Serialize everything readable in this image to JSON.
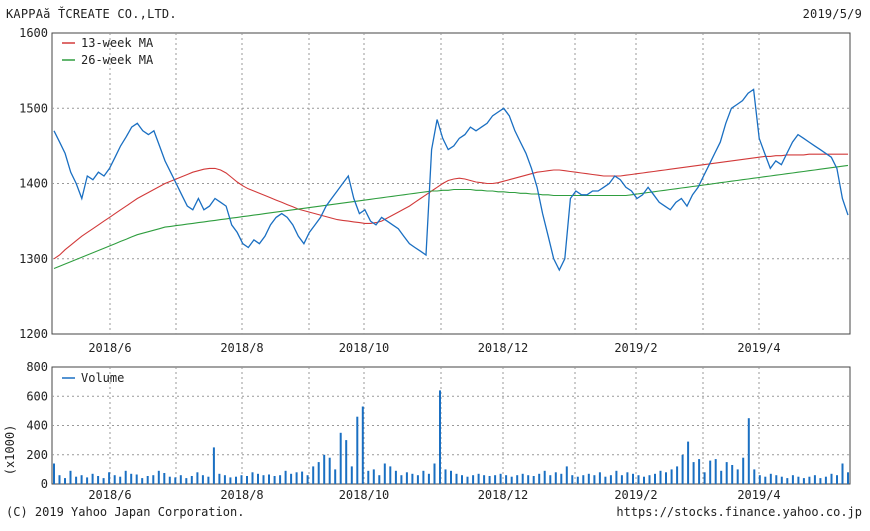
{
  "header": {
    "company": "KAPPAă ŤCREATE CO.,LTD.",
    "date": "2019/5/9"
  },
  "footer": {
    "copyright": "(C) 2019 Yahoo Japan Corporation.",
    "source": "https://stocks.finance.yahoo.co.jp"
  },
  "chart_data": [
    {
      "type": "line",
      "title": "",
      "ylim": [
        1200,
        1600
      ],
      "yticks": [
        1200,
        1300,
        1400,
        1500,
        1600
      ],
      "xticks": [
        "2018/6",
        "2018/8",
        "2018/10",
        "2018/12",
        "2019/2",
        "2019/4"
      ],
      "grid": true,
      "legend_position": "top-left",
      "series": [
        {
          "name": "",
          "color": "#1a6fc2",
          "values": [
            1470,
            1455,
            1440,
            1415,
            1400,
            1380,
            1410,
            1405,
            1415,
            1410,
            1420,
            1435,
            1450,
            1462,
            1475,
            1480,
            1470,
            1465,
            1470,
            1450,
            1430,
            1415,
            1400,
            1385,
            1370,
            1365,
            1380,
            1365,
            1370,
            1380,
            1375,
            1370,
            1345,
            1335,
            1320,
            1315,
            1325,
            1320,
            1330,
            1345,
            1355,
            1360,
            1355,
            1345,
            1330,
            1320,
            1335,
            1345,
            1355,
            1370,
            1380,
            1390,
            1400,
            1410,
            1380,
            1360,
            1365,
            1350,
            1345,
            1355,
            1350,
            1345,
            1340,
            1330,
            1320,
            1315,
            1310,
            1305,
            1445,
            1485,
            1460,
            1445,
            1450,
            1460,
            1465,
            1475,
            1470,
            1475,
            1480,
            1490,
            1495,
            1500,
            1490,
            1470,
            1455,
            1440,
            1420,
            1395,
            1360,
            1330,
            1300,
            1285,
            1300,
            1380,
            1390,
            1385,
            1385,
            1390,
            1390,
            1395,
            1400,
            1410,
            1405,
            1395,
            1390,
            1380,
            1385,
            1395,
            1385,
            1375,
            1370,
            1365,
            1375,
            1380,
            1370,
            1385,
            1395,
            1410,
            1425,
            1440,
            1455,
            1480,
            1500,
            1505,
            1510,
            1520,
            1525,
            1460,
            1440,
            1420,
            1430,
            1425,
            1440,
            1455,
            1465,
            1460,
            1455,
            1450,
            1445,
            1440,
            1435,
            1420,
            1380,
            1358
          ]
        },
        {
          "name": "13-week MA",
          "color": "#d23a3a",
          "values": [
            1300,
            1305,
            1312,
            1318,
            1324,
            1330,
            1335,
            1340,
            1345,
            1350,
            1355,
            1360,
            1365,
            1370,
            1375,
            1380,
            1384,
            1388,
            1392,
            1396,
            1400,
            1403,
            1406,
            1409,
            1412,
            1415,
            1417,
            1419,
            1420,
            1420,
            1418,
            1414,
            1408,
            1402,
            1397,
            1393,
            1390,
            1387,
            1384,
            1381,
            1378,
            1375,
            1372,
            1369,
            1366,
            1364,
            1362,
            1360,
            1358,
            1356,
            1354,
            1352,
            1351,
            1350,
            1349,
            1348,
            1347,
            1347,
            1348,
            1350,
            1354,
            1358,
            1362,
            1366,
            1370,
            1375,
            1380,
            1385,
            1390,
            1395,
            1400,
            1404,
            1406,
            1407,
            1406,
            1404,
            1402,
            1401,
            1400,
            1400,
            1401,
            1403,
            1405,
            1407,
            1409,
            1411,
            1413,
            1415,
            1416,
            1417,
            1418,
            1418,
            1417,
            1416,
            1415,
            1414,
            1413,
            1412,
            1411,
            1410,
            1410,
            1410,
            1410,
            1411,
            1412,
            1413,
            1414,
            1415,
            1416,
            1417,
            1418,
            1419,
            1420,
            1421,
            1422,
            1423,
            1424,
            1425,
            1426,
            1427,
            1428,
            1429,
            1430,
            1431,
            1432,
            1433,
            1434,
            1435,
            1436,
            1436,
            1437,
            1437,
            1438,
            1438,
            1438,
            1438,
            1439,
            1439,
            1439,
            1439,
            1439,
            1439,
            1439,
            1439
          ]
        },
        {
          "name": "26-week MA",
          "color": "#2f9e3f",
          "values": [
            1287,
            1290,
            1293,
            1296,
            1299,
            1302,
            1305,
            1308,
            1311,
            1314,
            1317,
            1320,
            1323,
            1326,
            1329,
            1332,
            1334,
            1336,
            1338,
            1340,
            1342,
            1343,
            1344,
            1345,
            1346,
            1347,
            1348,
            1349,
            1350,
            1351,
            1352,
            1353,
            1354,
            1355,
            1356,
            1357,
            1358,
            1359,
            1360,
            1361,
            1362,
            1363,
            1364,
            1365,
            1366,
            1367,
            1368,
            1369,
            1370,
            1371,
            1372,
            1373,
            1374,
            1375,
            1376,
            1377,
            1378,
            1379,
            1380,
            1381,
            1382,
            1383,
            1384,
            1385,
            1386,
            1387,
            1388,
            1389,
            1390,
            1390,
            1391,
            1391,
            1392,
            1392,
            1392,
            1392,
            1391,
            1391,
            1390,
            1390,
            1389,
            1389,
            1388,
            1388,
            1387,
            1387,
            1386,
            1386,
            1385,
            1385,
            1384,
            1384,
            1384,
            1384,
            1384,
            1384,
            1384,
            1384,
            1384,
            1384,
            1384,
            1384,
            1384,
            1384,
            1385,
            1386,
            1387,
            1388,
            1389,
            1390,
            1391,
            1392,
            1393,
            1394,
            1395,
            1396,
            1397,
            1398,
            1399,
            1400,
            1401,
            1402,
            1403,
            1404,
            1405,
            1406,
            1407,
            1408,
            1409,
            1410,
            1411,
            1412,
            1413,
            1414,
            1415,
            1416,
            1417,
            1418,
            1419,
            1420,
            1421,
            1422,
            1423,
            1424
          ]
        }
      ]
    },
    {
      "type": "bar",
      "ylim": [
        0,
        800
      ],
      "yticks": [
        0,
        200,
        400,
        600,
        800
      ],
      "ylabel": "(x1000)",
      "xticks": [
        "2018/6",
        "2018/8",
        "2018/10",
        "2018/12",
        "2019/2",
        "2019/4"
      ],
      "grid": true,
      "legend_position": "top-left",
      "series": [
        {
          "name": "Volume",
          "color": "#1a6fc2",
          "values": [
            140,
            60,
            40,
            90,
            50,
            60,
            45,
            70,
            55,
            40,
            80,
            60,
            50,
            90,
            70,
            65,
            40,
            55,
            60,
            90,
            75,
            50,
            45,
            60,
            40,
            55,
            80,
            60,
            50,
            250,
            70,
            60,
            45,
            50,
            60,
            55,
            80,
            70,
            60,
            65,
            55,
            60,
            90,
            70,
            80,
            85,
            60,
            120,
            150,
            200,
            180,
            100,
            350,
            300,
            120,
            460,
            530,
            90,
            100,
            60,
            140,
            120,
            90,
            60,
            80,
            70,
            60,
            90,
            70,
            140,
            640,
            100,
            90,
            70,
            60,
            50,
            60,
            70,
            60,
            55,
            60,
            70,
            60,
            50,
            60,
            70,
            60,
            55,
            70,
            90,
            60,
            80,
            70,
            120,
            60,
            50,
            60,
            70,
            60,
            80,
            50,
            60,
            90,
            60,
            80,
            70,
            60,
            50,
            60,
            70,
            90,
            80,
            100,
            120,
            200,
            290,
            150,
            170,
            80,
            160,
            170,
            90,
            150,
            130,
            100,
            180,
            450,
            100,
            60,
            50,
            70,
            60,
            50,
            40,
            60,
            50,
            40,
            50,
            60,
            40,
            50,
            70,
            60,
            140,
            80
          ]
        }
      ]
    }
  ]
}
